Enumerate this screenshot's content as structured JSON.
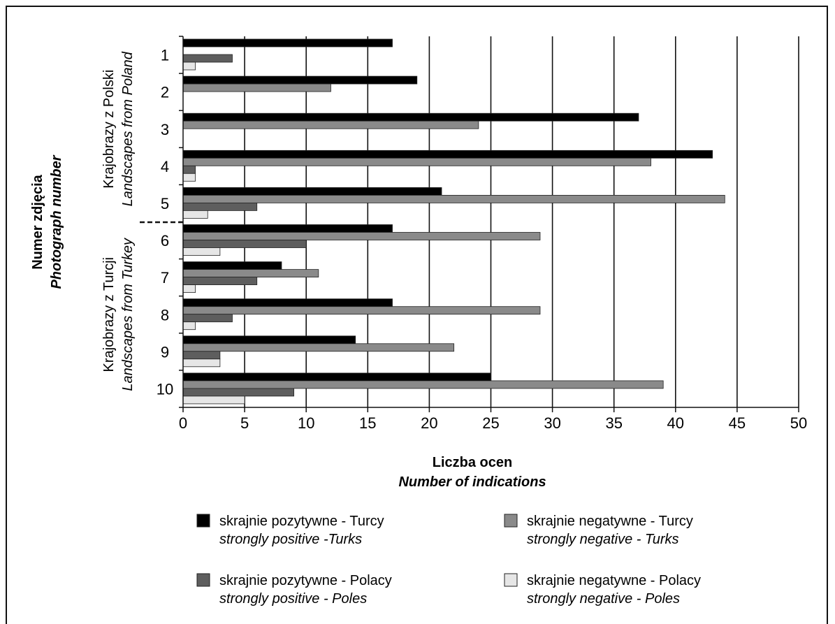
{
  "chart_data": {
    "type": "bar",
    "orientation": "horizontal",
    "categories": [
      "1",
      "2",
      "3",
      "4",
      "5",
      "6",
      "7",
      "8",
      "9",
      "10"
    ],
    "groups": [
      {
        "label": "Krajobrazy z Polski",
        "label_en": "Landscapes from Poland",
        "categories": [
          "1",
          "2",
          "3",
          "4",
          "5"
        ]
      },
      {
        "label": "Krajobrazy z Turcji",
        "label_en": "Landscapes from Turkey",
        "categories": [
          "6",
          "7",
          "8",
          "9",
          "10"
        ]
      }
    ],
    "series": [
      {
        "name": "skrajnie pozytywne - Turcy",
        "name_en": "strongly positive -Turks",
        "color": "#000000",
        "values": [
          17,
          19,
          37,
          43,
          21,
          17,
          8,
          17,
          14,
          25
        ]
      },
      {
        "name": "skrajnie negatywne - Turcy",
        "name_en": "strongly negative - Turks",
        "color": "#8a8a8a",
        "values": [
          0,
          12,
          24,
          38,
          44,
          29,
          11,
          29,
          22,
          39
        ]
      },
      {
        "name": "skrajnie pozytywne - Polacy",
        "name_en": "strongly positive - Poles",
        "color": "#5e5e5e",
        "values": [
          4,
          0,
          0,
          1,
          6,
          10,
          6,
          4,
          3,
          9
        ]
      },
      {
        "name": "skrajnie negatywne - Polacy",
        "name_en": "strongly negative - Poles",
        "color": "#e6e6e6",
        "values": [
          1,
          0,
          0,
          1,
          2,
          3,
          1,
          1,
          3,
          5
        ]
      }
    ],
    "xlabel": "Liczba ocen",
    "xlabel_en": "Number of indications",
    "ylabel": "Numer zdjęcia",
    "ylabel_en": "Photograph number",
    "xlim": [
      0,
      50
    ],
    "xticks": [
      0,
      5,
      10,
      15,
      20,
      25,
      30,
      35,
      40,
      45,
      50
    ],
    "grid": "vertical",
    "legend_position": "bottom"
  }
}
